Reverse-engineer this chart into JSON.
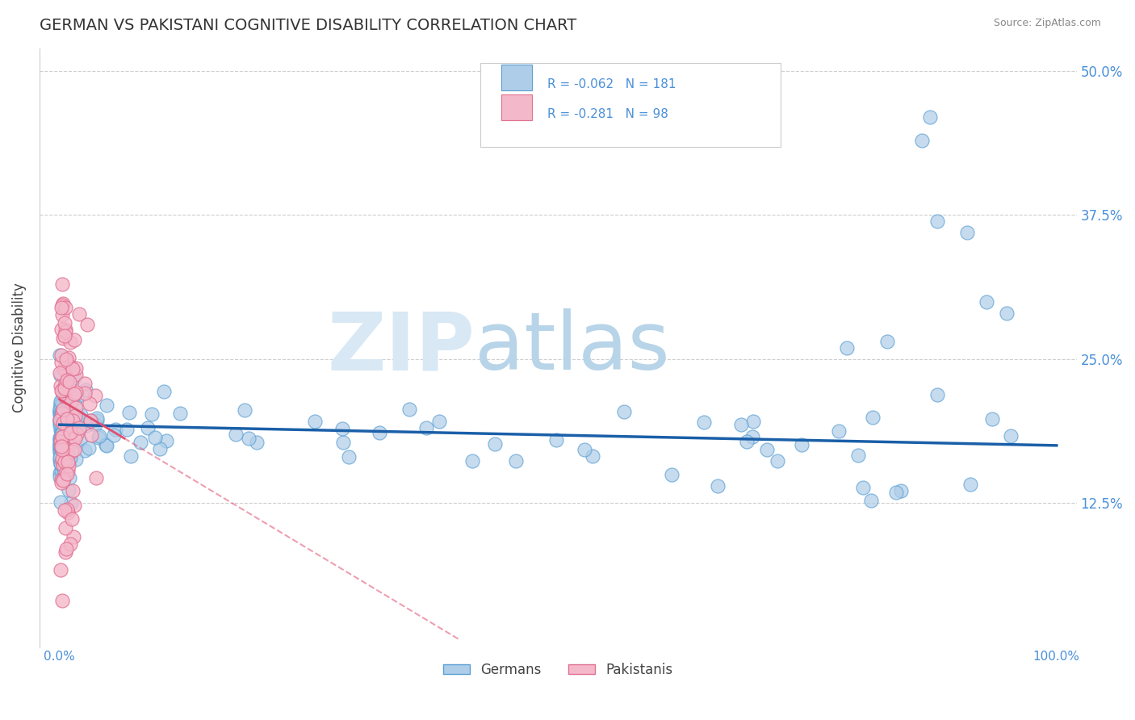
{
  "title": "GERMAN VS PAKISTANI COGNITIVE DISABILITY CORRELATION CHART",
  "source_text": "Source: ZipAtlas.com",
  "ylabel": "Cognitive Disability",
  "xlim": [
    -0.02,
    1.02
  ],
  "ylim": [
    0.0,
    0.52
  ],
  "xticks": [
    0,
    1.0
  ],
  "xticklabels": [
    "0.0%",
    "100.0%"
  ],
  "yticks": [
    0.125,
    0.25,
    0.375,
    0.5
  ],
  "yticklabels": [
    "12.5%",
    "25.0%",
    "37.5%",
    "50.0%"
  ],
  "german_color": "#aecde8",
  "german_edge_color": "#5a9fd4",
  "pakistani_color": "#f4b8cb",
  "pakistani_edge_color": "#e07090",
  "german_line_color": "#1a5fa8",
  "pakistani_line_color": "#e05070",
  "watermark_zip": "ZIP",
  "watermark_atlas": "atlas",
  "watermark_color_zip": "#d8e8f4",
  "watermark_color_atlas": "#b8d4e8",
  "legend_r_german": "R = -0.062",
  "legend_n_german": "N = 181",
  "legend_r_pakistani": "R = -0.281",
  "legend_n_pakistani": "N = 98",
  "background_color": "#ffffff",
  "grid_color": "#bbbbbb",
  "title_color": "#333333",
  "label_color": "#444444",
  "tick_color": "#4a90d9",
  "annotation_color": "#4a90d9",
  "source_color": "#888888"
}
